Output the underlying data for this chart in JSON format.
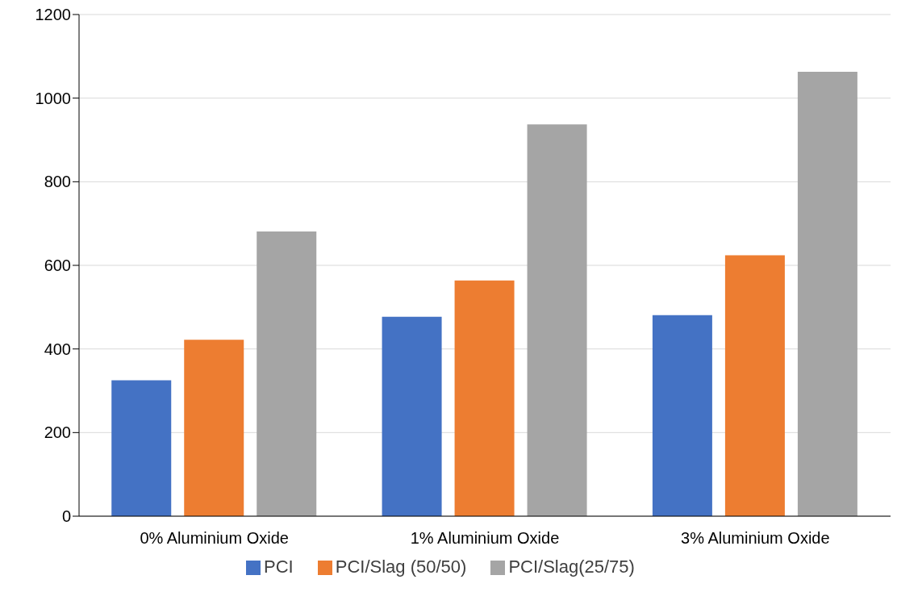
{
  "chart_data": {
    "type": "bar",
    "categories": [
      "0% Aluminium Oxide",
      "1% Aluminium Oxide",
      "3% Aluminium Oxide"
    ],
    "series": [
      {
        "name": "PCI",
        "color": "#4472c4",
        "values": [
          325,
          477,
          481
        ]
      },
      {
        "name": "PCI/Slag (50/50)",
        "color": "#ed7d31",
        "values": [
          422,
          564,
          624
        ]
      },
      {
        "name": "PCI/Slag(25/75)",
        "color": "#a5a5a5",
        "values": [
          681,
          937,
          1063
        ]
      }
    ],
    "ylim": [
      0,
      1200
    ],
    "yticks": [
      0,
      200,
      400,
      600,
      800,
      1000,
      1200
    ],
    "grid": "y",
    "legend": "bottom"
  }
}
